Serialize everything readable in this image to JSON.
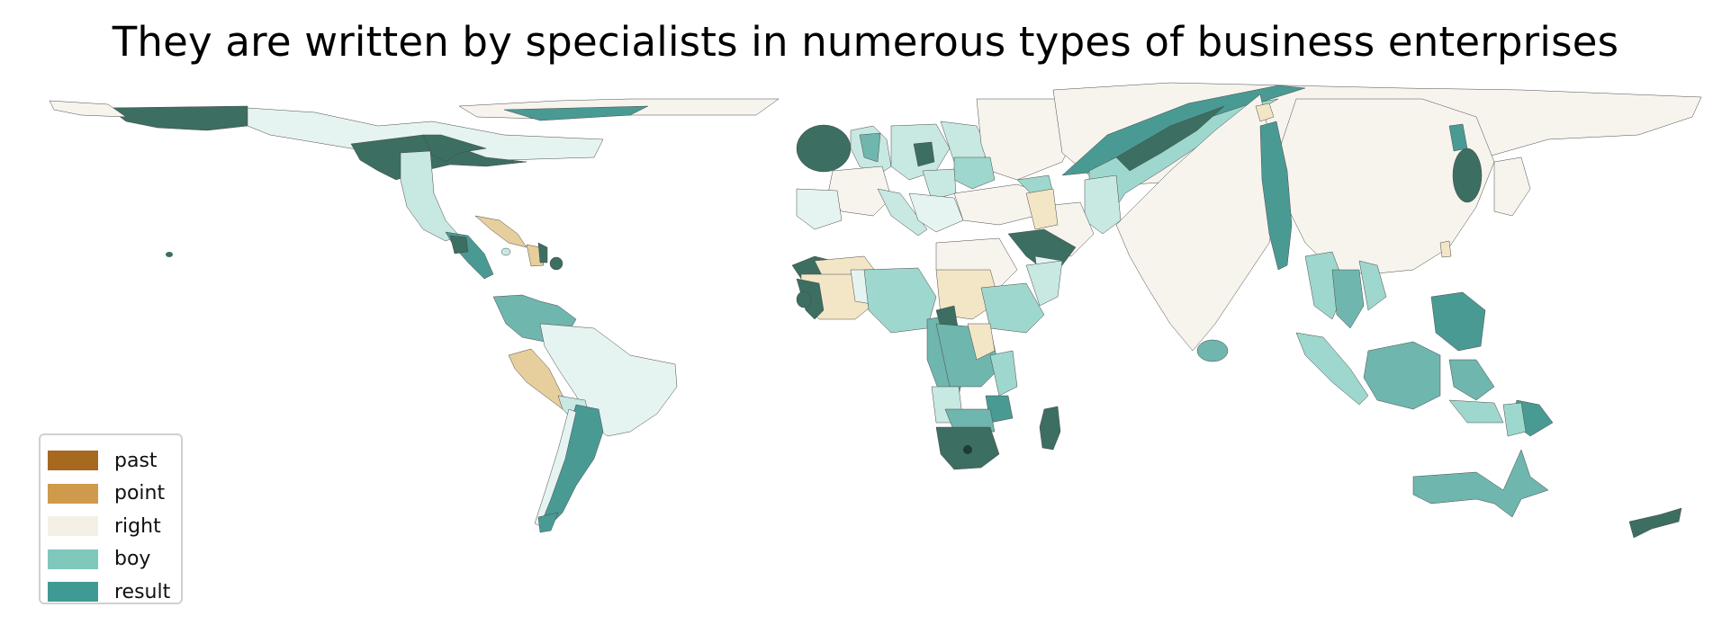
{
  "title": "They are written by specialists in numerous types of business enterprises",
  "legend": {
    "items": [
      {
        "label": "past",
        "color": "#a6691f"
      },
      {
        "label": "point",
        "color": "#cf9a4b"
      },
      {
        "label": "right",
        "color": "#f4f0e6"
      },
      {
        "label": "boy",
        "color": "#7ec8bc"
      },
      {
        "label": "result",
        "color": "#3f9a93"
      }
    ]
  },
  "palette": {
    "dark_teal": "#3c6e62",
    "teal": "#4a9a94",
    "mid_teal": "#6fb6ae",
    "light_teal": "#9ed7cd",
    "pale_teal": "#c8e8e2",
    "very_pale_teal": "#e5f4f1",
    "cream": "#f7f4ee",
    "wheat": "#f3e6c7",
    "tan": "#e6cf9c"
  }
}
